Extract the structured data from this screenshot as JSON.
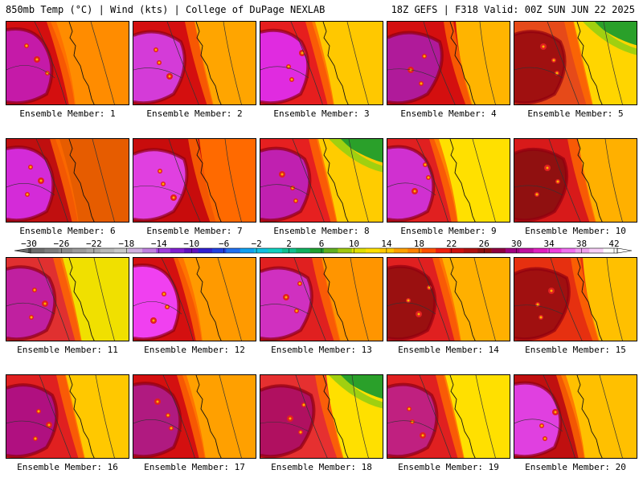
{
  "header": {
    "left": "850mb Temp (°C) | Wind (kts) | College of DuPage NEXLAB",
    "right": "18Z GEFS | F318 Valid: 00Z SUN JUN 22 2025"
  },
  "members": [
    {
      "label": "Ensemble Member: 1",
      "hot": "#c51aa8",
      "warm": "#d40f0f",
      "cool": "#ff8c00",
      "green": false
    },
    {
      "label": "Ensemble Member: 2",
      "hot": "#d43bd8",
      "warm": "#d40f0f",
      "cool": "#ffa500",
      "green": false
    },
    {
      "label": "Ensemble Member: 3",
      "hot": "#e02be0",
      "warm": "#e61e1e",
      "cool": "#ffc800",
      "green": false
    },
    {
      "label": "Ensemble Member: 4",
      "hot": "#b01a9a",
      "warm": "#d40f0f",
      "cool": "#ffb400",
      "green": false
    },
    {
      "label": "Ensemble Member: 5",
      "hot": "#a01010",
      "warm": "#e64a19",
      "cool": "#ffd500",
      "green": true
    },
    {
      "label": "Ensemble Member: 6",
      "hot": "#d42bd8",
      "warm": "#c00f0f",
      "cool": "#e65c00",
      "green": false
    },
    {
      "label": "Ensemble Member: 7",
      "hot": "#e040e0",
      "warm": "#c80c0c",
      "cool": "#ff6a00",
      "green": false
    },
    {
      "label": "Ensemble Member: 8",
      "hot": "#c020b0",
      "warm": "#e62020",
      "cool": "#ffcc00",
      "green": true
    },
    {
      "label": "Ensemble Member: 9",
      "hot": "#d030d0",
      "warm": "#e02020",
      "cool": "#ffe000",
      "green": false
    },
    {
      "label": "Ensemble Member: 10",
      "hot": "#901010",
      "warm": "#d81a1a",
      "cool": "#ffb000",
      "green": false
    },
    {
      "label": "Ensemble Member: 11",
      "hot": "#c020a0",
      "warm": "#e03030",
      "cool": "#f0e000",
      "green": false
    },
    {
      "label": "Ensemble Member: 12",
      "hot": "#f040f0",
      "warm": "#d41010",
      "cool": "#ff9a00",
      "green": false
    },
    {
      "label": "Ensemble Member: 13",
      "hot": "#d030c0",
      "warm": "#e02020",
      "cool": "#ff9500",
      "green": false
    },
    {
      "label": "Ensemble Member: 14",
      "hot": "#9a1010",
      "warm": "#e02020",
      "cool": "#ffb000",
      "green": false
    },
    {
      "label": "Ensemble Member: 15",
      "hot": "#a01010",
      "warm": "#e63010",
      "cool": "#ffc000",
      "green": false
    },
    {
      "label": "Ensemble Member: 16",
      "hot": "#b01080",
      "warm": "#e02020",
      "cool": "#ffc800",
      "green": false
    },
    {
      "label": "Ensemble Member: 17",
      "hot": "#b01a80",
      "warm": "#d41010",
      "cool": "#ffa000",
      "green": false
    },
    {
      "label": "Ensemble Member: 18",
      "hot": "#b01060",
      "warm": "#e63030",
      "cool": "#ffe000",
      "green": true
    },
    {
      "label": "Ensemble Member: 19",
      "hot": "#c02080",
      "warm": "#e02020",
      "cool": "#ffe000",
      "green": false
    },
    {
      "label": "Ensemble Member: 20",
      "hot": "#e040e0",
      "warm": "#c01010",
      "cool": "#ffc000",
      "green": false
    }
  ],
  "colorbar": {
    "labels": [
      "−30",
      "−26",
      "−22",
      "−18",
      "−14",
      "−10",
      "−6",
      "−2",
      "2",
      "6",
      "10",
      "14",
      "18",
      "22",
      "26",
      "30",
      "34",
      "38",
      "42"
    ],
    "colors": [
      "#6e6e6e",
      "#7d7d7d",
      "#8c8c8c",
      "#9b9b9b",
      "#aaaaaa",
      "#b9b9b9",
      "#c8c8c8",
      "#d0b0e0",
      "#c080e0",
      "#a040e0",
      "#8020d0",
      "#6010c0",
      "#3020d0",
      "#2040e0",
      "#2070f0",
      "#10a0f0",
      "#10c0e0",
      "#10d0c0",
      "#10c090",
      "#10b060",
      "#20a030",
      "#60b020",
      "#a0c810",
      "#e0e000",
      "#ffe000",
      "#ffc800",
      "#ffa000",
      "#ff8000",
      "#ff5000",
      "#f02010",
      "#d01010",
      "#b01010",
      "#901010",
      "#900040",
      "#a00080",
      "#c010a0",
      "#e020c0",
      "#f040e0",
      "#f070f0",
      "#f0a0f0",
      "#f8d0f8",
      "#ffffff"
    ]
  }
}
